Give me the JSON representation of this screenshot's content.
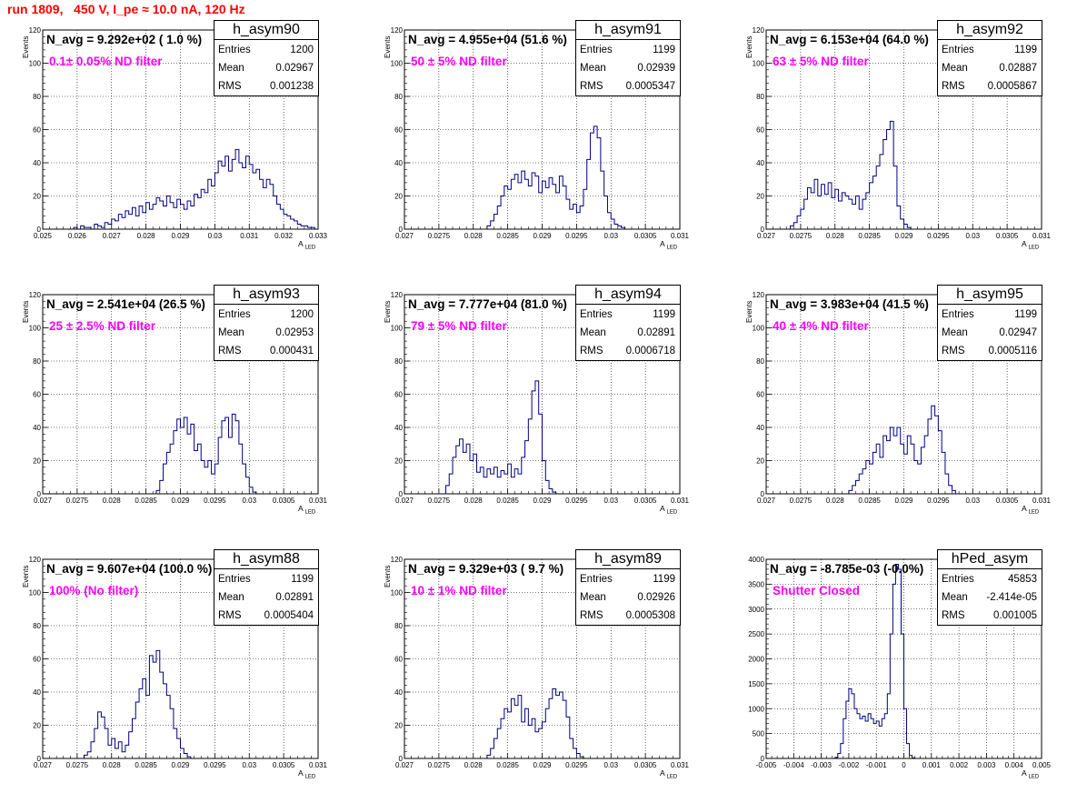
{
  "header": {
    "run_title": "run 1809,   450 V, I_pe ≈ 10.0 nA, 120 Hz"
  },
  "chart_data": [
    {
      "type": "histogram",
      "name": "h_asym90",
      "n_avg_label": "N_avg = 9.292e+02 ( 1.0 %)",
      "filter_label": "0.1± 0.05% ND filter",
      "stats": {
        "entries": "1200",
        "mean": "0.02967",
        "rms": "0.001238"
      },
      "xlabel": "A_LED",
      "ylabel": "Events",
      "xlim": [
        0.025,
        0.033
      ],
      "ylim": [
        0,
        120
      ],
      "xticks": [
        "0.025",
        "0.026",
        "0.027",
        "0.028",
        "0.029",
        "0.03",
        "0.031",
        "0.032",
        "0.033"
      ],
      "yticks": [
        "0",
        "20",
        "40",
        "60",
        "80",
        "100",
        "120"
      ],
      "bins": {
        "x0": 0.0259,
        "w": 0.0001,
        "values": [
          1,
          0,
          2,
          1,
          1,
          0,
          3,
          2,
          1,
          4,
          3,
          6,
          5,
          9,
          7,
          11,
          9,
          13,
          8,
          14,
          10,
          16,
          12,
          15,
          19,
          17,
          14,
          20,
          16,
          13,
          18,
          15,
          12,
          17,
          14,
          21,
          19,
          24,
          22,
          30,
          26,
          34,
          41,
          38,
          44,
          35,
          42,
          48,
          40,
          37,
          44,
          39,
          34,
          36,
          30,
          25,
          30,
          27,
          20,
          15,
          12,
          9,
          8,
          6,
          5,
          3,
          2,
          2,
          1,
          1
        ]
      }
    },
    {
      "type": "histogram",
      "name": "h_asym91",
      "n_avg_label": "N_avg = 4.955e+04 (51.6 %)",
      "filter_label": "50 ± 5% ND filter",
      "stats": {
        "entries": "1199",
        "mean": "0.02939",
        "rms": "0.0005347"
      },
      "xlabel": "A_LED",
      "ylabel": "Events",
      "xlim": [
        0.027,
        0.031
      ],
      "ylim": [
        0,
        120
      ],
      "xticks": [
        "0.027",
        "0.0275",
        "0.028",
        "0.0285",
        "0.029",
        "0.0295",
        "0.03",
        "0.0305",
        "0.031"
      ],
      "yticks": [
        "0",
        "20",
        "40",
        "60",
        "80",
        "100",
        "120"
      ],
      "bins": {
        "x0": 0.0282,
        "w": 5e-05,
        "values": [
          2,
          5,
          9,
          14,
          20,
          26,
          24,
          30,
          33,
          28,
          35,
          30,
          26,
          34,
          32,
          22,
          29,
          25,
          31,
          27,
          22,
          32,
          26,
          18,
          12,
          15,
          10,
          14,
          24,
          42,
          58,
          62,
          55,
          35,
          20,
          10,
          6,
          3,
          2,
          1
        ]
      }
    },
    {
      "type": "histogram",
      "name": "h_asym92",
      "n_avg_label": "N_avg = 6.153e+04 (64.0 %)",
      "filter_label": "63 ± 5% ND filter",
      "stats": {
        "entries": "1199",
        "mean": "0.02887",
        "rms": "0.0005867"
      },
      "xlabel": "A_LED",
      "ylabel": "Events",
      "xlim": [
        0.027,
        0.031
      ],
      "ylim": [
        0,
        120
      ],
      "xticks": [
        "0.027",
        "0.0275",
        "0.028",
        "0.0285",
        "0.029",
        "0.0295",
        "0.03",
        "0.0305",
        "0.031"
      ],
      "yticks": [
        "0",
        "20",
        "40",
        "60",
        "80",
        "100",
        "120"
      ],
      "bins": {
        "x0": 0.02735,
        "w": 5e-05,
        "values": [
          2,
          4,
          8,
          12,
          18,
          25,
          22,
          30,
          20,
          27,
          21,
          28,
          19,
          24,
          17,
          22,
          20,
          18,
          15,
          20,
          12,
          18,
          22,
          28,
          32,
          38,
          45,
          54,
          60,
          65,
          38,
          14,
          6,
          3,
          1
        ]
      }
    },
    {
      "type": "histogram",
      "name": "h_asym93",
      "n_avg_label": "N_avg = 2.541e+04 (26.5 %)",
      "filter_label": "25 ± 2.5% ND filter",
      "stats": {
        "entries": "1200",
        "mean": "0.02953",
        "rms": "0.000431"
      },
      "xlabel": "A_LED",
      "ylabel": "Events",
      "xlim": [
        0.027,
        0.031
      ],
      "ylim": [
        0,
        120
      ],
      "xticks": [
        "0.027",
        "0.0275",
        "0.028",
        "0.0285",
        "0.029",
        "0.0295",
        "0.03",
        "0.0305",
        "0.031"
      ],
      "yticks": [
        "0",
        "20",
        "40",
        "60",
        "80",
        "100",
        "120"
      ],
      "bins": {
        "x0": 0.02865,
        "w": 5e-05,
        "values": [
          2,
          8,
          18,
          25,
          30,
          38,
          45,
          40,
          46,
          36,
          42,
          26,
          30,
          20,
          16,
          20,
          12,
          18,
          34,
          44,
          46,
          34,
          48,
          44,
          30,
          18,
          10,
          4,
          1
        ]
      }
    },
    {
      "type": "histogram",
      "name": "h_asym94",
      "n_avg_label": "N_avg = 7.777e+04 (81.0 %)",
      "filter_label": "79 ± 5% ND filter",
      "stats": {
        "entries": "1199",
        "mean": "0.02891",
        "rms": "0.0006718"
      },
      "xlabel": "A_LED",
      "ylabel": "Events",
      "xlim": [
        0.027,
        0.031
      ],
      "ylim": [
        0,
        120
      ],
      "xticks": [
        "0.027",
        "0.0275",
        "0.028",
        "0.0285",
        "0.029",
        "0.0295",
        "0.03",
        "0.0305",
        "0.031"
      ],
      "yticks": [
        "0",
        "20",
        "40",
        "60",
        "80",
        "100",
        "120"
      ],
      "bins": {
        "x0": 0.0276,
        "w": 5e-05,
        "values": [
          5,
          12,
          22,
          29,
          33,
          25,
          30,
          20,
          24,
          13,
          16,
          10,
          15,
          12,
          16,
          10,
          14,
          12,
          18,
          10,
          15,
          12,
          22,
          32,
          45,
          62,
          68,
          48,
          20,
          8,
          3,
          1
        ]
      }
    },
    {
      "type": "histogram",
      "name": "h_asym95",
      "n_avg_label": "N_avg = 3.983e+04 (41.5 %)",
      "filter_label": "40 ± 4% ND filter",
      "stats": {
        "entries": "1199",
        "mean": "0.02947",
        "rms": "0.0005116"
      },
      "xlabel": "A_LED",
      "ylabel": "Events",
      "xlim": [
        0.027,
        0.031
      ],
      "ylim": [
        0,
        120
      ],
      "xticks": [
        "0.027",
        "0.0275",
        "0.028",
        "0.0285",
        "0.029",
        "0.0295",
        "0.03",
        "0.0305",
        "0.031"
      ],
      "yticks": [
        "0",
        "20",
        "40",
        "60",
        "80",
        "100",
        "120"
      ],
      "bins": {
        "x0": 0.0282,
        "w": 5e-05,
        "values": [
          2,
          5,
          8,
          12,
          15,
          20,
          18,
          25,
          30,
          22,
          35,
          32,
          40,
          35,
          40,
          30,
          24,
          35,
          30,
          20,
          18,
          28,
          35,
          45,
          53,
          47,
          38,
          25,
          12,
          5,
          2
        ]
      }
    },
    {
      "type": "histogram",
      "name": "h_asym88",
      "n_avg_label": "N_avg = 9.607e+04 (100.0 %)",
      "filter_label": "100% (No filter)",
      "stats": {
        "entries": "1199",
        "mean": "0.02891",
        "rms": "0.0005404"
      },
      "xlabel": "A_LED",
      "ylabel": "Events",
      "xlim": [
        0.027,
        0.031
      ],
      "ylim": [
        0,
        120
      ],
      "xticks": [
        "0.027",
        "0.0275",
        "0.028",
        "0.0285",
        "0.029",
        "0.0295",
        "0.03",
        "0.0305",
        "0.031"
      ],
      "yticks": [
        "0",
        "20",
        "40",
        "60",
        "80",
        "100",
        "120"
      ],
      "bins": {
        "x0": 0.0276,
        "w": 5e-05,
        "values": [
          2,
          4,
          10,
          18,
          28,
          25,
          18,
          8,
          12,
          6,
          10,
          4,
          8,
          16,
          24,
          34,
          42,
          48,
          38,
          62,
          58,
          65,
          52,
          45,
          38,
          30,
          18,
          12,
          6,
          3,
          1
        ]
      }
    },
    {
      "type": "histogram",
      "name": "h_asym89",
      "n_avg_label": "N_avg = 9.329e+03 ( 9.7 %)",
      "filter_label": "10 ± 1% ND filter",
      "stats": {
        "entries": "1199",
        "mean": "0.02926",
        "rms": "0.0005308"
      },
      "xlabel": "A_LED",
      "ylabel": "Events",
      "xlim": [
        0.027,
        0.031
      ],
      "ylim": [
        0,
        120
      ],
      "xticks": [
        "0.027",
        "0.0275",
        "0.028",
        "0.0285",
        "0.029",
        "0.0295",
        "0.03",
        "0.0305",
        "0.031"
      ],
      "yticks": [
        "0",
        "20",
        "40",
        "60",
        "80",
        "100",
        "120"
      ],
      "bins": {
        "x0": 0.0282,
        "w": 5e-05,
        "values": [
          2,
          6,
          12,
          18,
          24,
          30,
          28,
          36,
          32,
          38,
          22,
          30,
          20,
          24,
          16,
          18,
          22,
          30,
          36,
          42,
          38,
          40,
          35,
          25,
          12,
          6,
          3,
          1
        ]
      }
    },
    {
      "type": "histogram",
      "name": "hPed_asym",
      "n_avg_label": "N_avg = -8.785e-03 (-0.0%)",
      "filter_label": "Shutter Closed",
      "stats": {
        "entries": "45853",
        "mean": "-2.414e-05",
        "rms": "0.001005"
      },
      "xlabel": "A_LED",
      "ylabel": "",
      "xlim": [
        -0.005,
        0.005
      ],
      "ylim": [
        0,
        4000
      ],
      "xticks": [
        "-0.005",
        "-0.004",
        "-0.003",
        "-0.002",
        "-0.001",
        "0",
        "0.001",
        "0.002",
        "0.003",
        "0.004",
        "0.005"
      ],
      "yticks": [
        "0",
        "500",
        "1000",
        "1500",
        "2000",
        "2500",
        "3000",
        "3500",
        "4000"
      ],
      "bins": {
        "x0": -0.0025,
        "w": 0.0001,
        "values": [
          20,
          100,
          300,
          800,
          1150,
          1400,
          1300,
          1000,
          900,
          800,
          850,
          750,
          900,
          800,
          700,
          750,
          650,
          800,
          900,
          1300,
          2500,
          3500,
          3900,
          3800,
          2500,
          1000,
          300,
          60,
          10
        ]
      }
    }
  ]
}
